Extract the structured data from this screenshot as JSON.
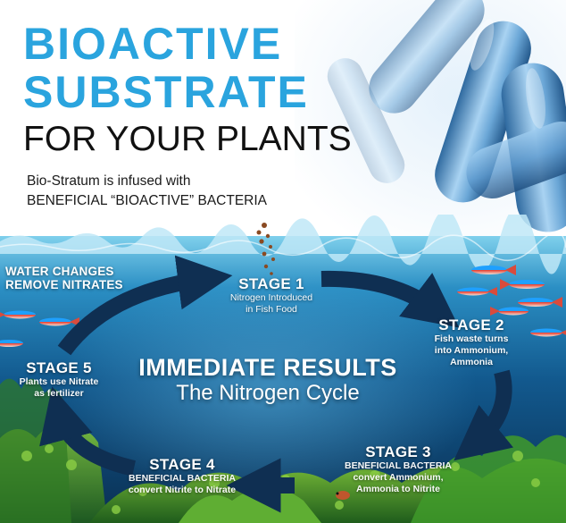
{
  "header": {
    "title_line1": "BIOACTIVE",
    "title_line2": "SUBSTRATE",
    "subtitle": "FOR YOUR PLANTS",
    "intro_line1": "Bio-Stratum is infused with",
    "intro_line2": "BENEFICIAL “BIOACTIVE” BACTERIA"
  },
  "cycle": {
    "side_note_line1": "WATER CHANGES",
    "side_note_line2": "REMOVE NITRATES",
    "center_heading": "IMMEDIATE RESULTS",
    "center_subheading": "The Nitrogen Cycle",
    "stages": [
      {
        "heading": "STAGE 1",
        "line1": "Nitrogen Introduced",
        "line2": "in Fish Food"
      },
      {
        "heading": "STAGE 2",
        "line1": "Fish waste turns",
        "line2": "into Ammonium,",
        "line3": "Ammonia"
      },
      {
        "heading": "STAGE 3",
        "line1": "BENEFICIAL BACTERIA",
        "line2": "convert Ammonium,",
        "line3": "Ammonia to Nitrite"
      },
      {
        "heading": "STAGE 4",
        "line1": "BENEFICIAL BACTERIA",
        "line2": "convert Nitrite to Nitrate"
      },
      {
        "heading": "STAGE 5",
        "line1": "Plants use Nitrate",
        "line2": "as fertilizer"
      }
    ]
  },
  "colors": {
    "title_blue": "#2aa4de",
    "water_top": "#7fd0ec",
    "water_deep": "#0a3f6b",
    "arrow": "#0f2f52",
    "plant_green": "#3f9a2a"
  }
}
